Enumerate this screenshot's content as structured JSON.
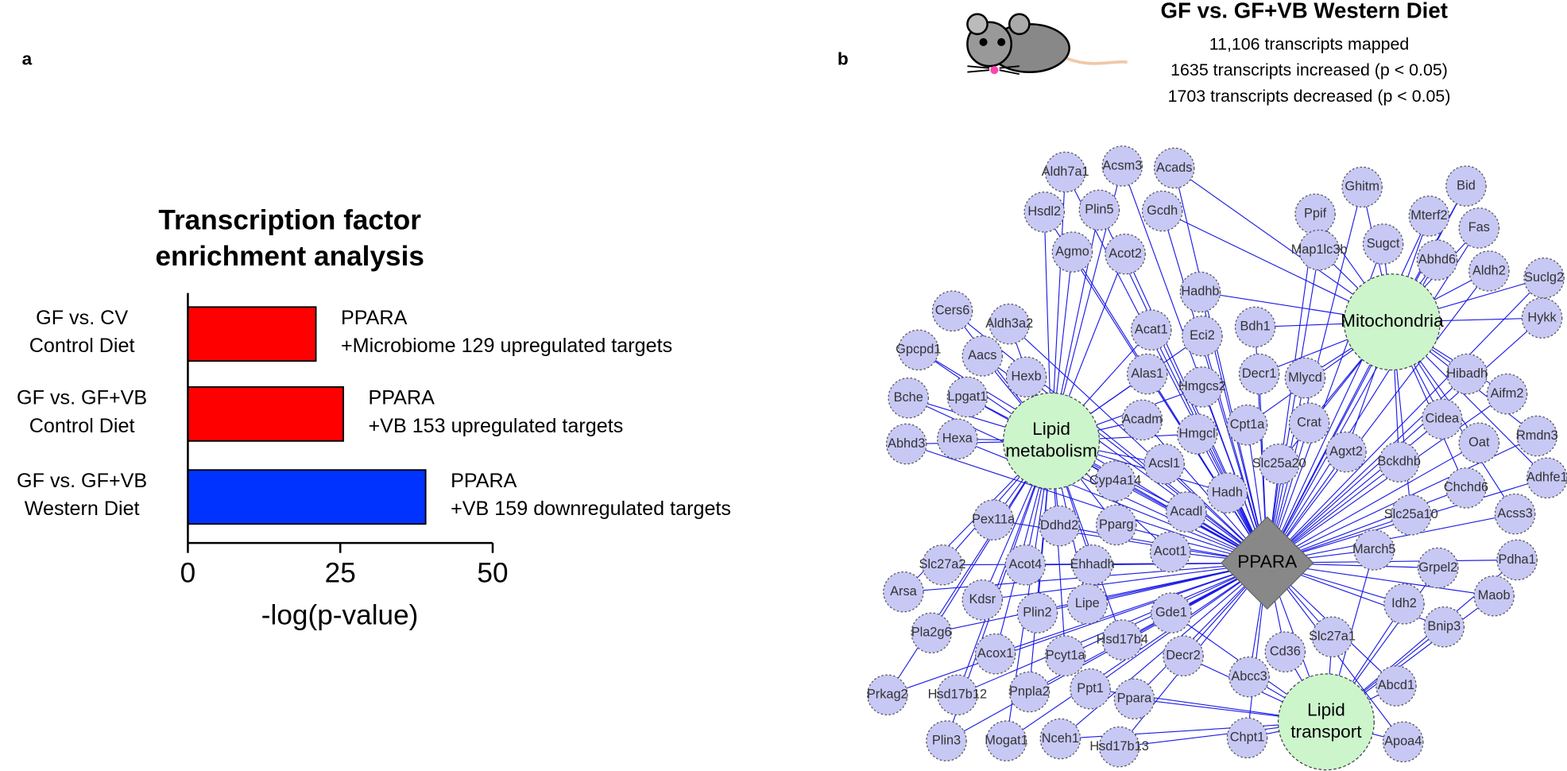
{
  "chart_data": {
    "type": "barh",
    "panel": "a",
    "title": [
      "Transcription factor",
      "enrichment analysis"
    ],
    "categories": [
      [
        "GF vs. CV",
        "Control Diet"
      ],
      [
        "GF vs. GF+VB",
        "Control Diet"
      ],
      [
        "GF vs. GF+VB",
        "Western Diet"
      ]
    ],
    "values": [
      21,
      25.5,
      39
    ],
    "colors": [
      "#ff0000",
      "#ff0000",
      "#0033ff"
    ],
    "annotations": [
      [
        "PPARA",
        "+Microbiome 129 upregulated targets"
      ],
      [
        "PPARA",
        "+VB 153 upregulated targets"
      ],
      [
        "PPARA",
        "+VB 159 downregulated targets"
      ]
    ],
    "xlabel": "-log(p-value)",
    "xlim": [
      0,
      50
    ],
    "xticks": [
      0,
      25,
      50
    ]
  },
  "network": {
    "panel": "b",
    "title": "GF vs. GF+VB Western Diet",
    "summary": [
      "11,106 transcripts mapped",
      "1635 transcripts increased (p < 0.05)",
      "1703 transcripts decreased (p < 0.05)"
    ],
    "center": "PPARA",
    "hubs": [
      [
        "Mitochondria"
      ],
      [
        "Lipid",
        "metabolism"
      ],
      [
        "Lipid",
        "transport"
      ]
    ],
    "genes": [
      "Aldh7a1",
      "Acsm3",
      "Acads",
      "Hsdl2",
      "Plin5",
      "Gcdh",
      "Agmo",
      "Acot2",
      "Ghitm",
      "Bid",
      "Ppif",
      "Mterf2",
      "Fas",
      "Map1lc3b",
      "Sugct",
      "Abhd6",
      "Aldh2",
      "Suclg2",
      "Hadhb",
      "Hykk",
      "Cers6",
      "Aldh3a2",
      "Acat1",
      "Eci2",
      "Bdh1",
      "Gpcpd1",
      "Aacs",
      "Hexb",
      "Alas1",
      "Hmgcs2",
      "Decr1",
      "Mlycd",
      "Hibadh",
      "Aifm2",
      "Bche",
      "Lpgat1",
      "Acadm",
      "Hmgcl",
      "Cpt1a",
      "Crat",
      "Cidea",
      "Oat",
      "Rmdn3",
      "Abhd3",
      "Hexa",
      "Acsl1",
      "Slc25a20",
      "Agxt2",
      "Bckdhb",
      "Adhfe1",
      "Cyp4a14",
      "Hadh",
      "Chchd6",
      "Acss3",
      "Pex11a",
      "Ddhd2",
      "Pparg",
      "Acadl",
      "Slc25a10",
      "Acot1",
      "March5",
      "Pdha1",
      "Slc27a2",
      "Acot4",
      "Ehhadh",
      "Grpel2",
      "Arsa",
      "Kdsr",
      "Lipe",
      "Gde1",
      "Maob",
      "Idh2",
      "Plin2",
      "Slc27a1",
      "Bnip3",
      "Pla2g6",
      "Hsd17b4",
      "Cd36",
      "Pcyt1a",
      "Decr2",
      "Acox1",
      "Abcc3",
      "Abcd1",
      "Prkag2",
      "Hsd17b12",
      "Pnpla2",
      "Ppt1",
      "Ppara",
      "Chpt1",
      "Apoa4",
      "Plin3",
      "Mogat1",
      "Nceh1",
      "Hsd17b13"
    ]
  }
}
